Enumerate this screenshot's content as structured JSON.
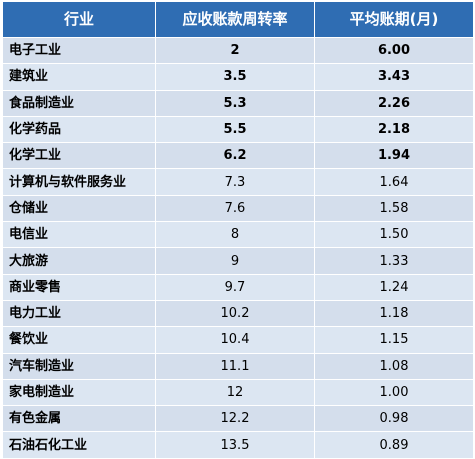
{
  "table": {
    "headers": [
      "行业",
      "应收账款周转率",
      "平均账期(月)"
    ],
    "rows": [
      {
        "industry": "电子工业",
        "turnover": "2",
        "period": "6.00",
        "bold": true
      },
      {
        "industry": "建筑业",
        "turnover": "3.5",
        "period": "3.43",
        "bold": true
      },
      {
        "industry": "食品制造业",
        "turnover": "5.3",
        "period": "2.26",
        "bold": true
      },
      {
        "industry": "化学药品",
        "turnover": "5.5",
        "period": "2.18",
        "bold": true
      },
      {
        "industry": "化学工业",
        "turnover": "6.2",
        "period": "1.94",
        "bold": true
      },
      {
        "industry": "计算机与软件服务业",
        "turnover": "7.3",
        "period": "1.64",
        "bold": false
      },
      {
        "industry": "仓储业",
        "turnover": "7.6",
        "period": "1.58",
        "bold": false
      },
      {
        "industry": "电信业",
        "turnover": "8",
        "period": "1.50",
        "bold": false
      },
      {
        "industry": "大旅游",
        "turnover": "9",
        "period": "1.33",
        "bold": false
      },
      {
        "industry": "商业零售",
        "turnover": "9.7",
        "period": "1.24",
        "bold": false
      },
      {
        "industry": "电力工业",
        "turnover": "10.2",
        "period": "1.18",
        "bold": false
      },
      {
        "industry": "餐饮业",
        "turnover": "10.4",
        "period": "1.15",
        "bold": false
      },
      {
        "industry": "汽车制造业",
        "turnover": "11.1",
        "period": "1.08",
        "bold": false
      },
      {
        "industry": "家电制造业",
        "turnover": "12",
        "period": "1.00",
        "bold": false
      },
      {
        "industry": "有色金属",
        "turnover": "12.2",
        "period": "0.98",
        "bold": false
      },
      {
        "industry": "石油石化工业",
        "turnover": "13.5",
        "period": "0.89",
        "bold": false
      }
    ]
  },
  "colors": {
    "header_bg": "#2f6db3",
    "row_bg": "#dce6f2"
  }
}
